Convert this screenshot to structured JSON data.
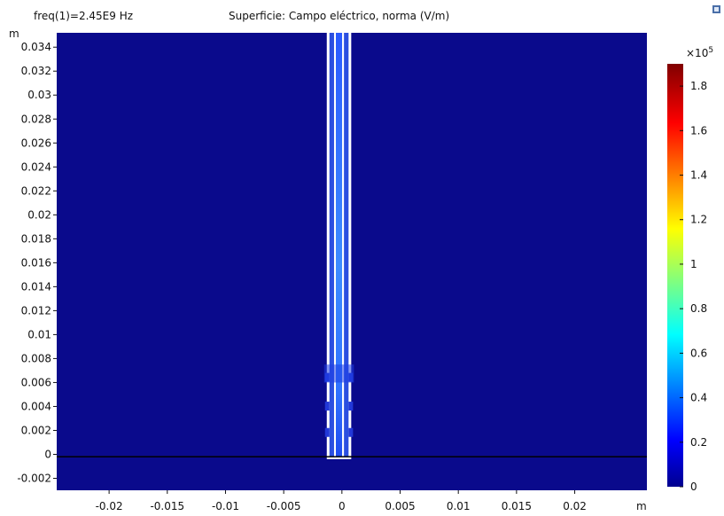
{
  "header": {
    "param_label": "freq(1)=2.45E9 Hz",
    "plot_title": "Superficie: Campo eléctrico, norma (V/m)"
  },
  "chart_data": {
    "type": "heatmap",
    "title": "Superficie: Campo eléctrico, norma (V/m)",
    "subtitle": "freq(1)=2.45E9 Hz",
    "xlabel": "m",
    "ylabel": "m",
    "xlim": [
      -0.0245,
      0.0262
    ],
    "ylim": [
      -0.003,
      0.0352
    ],
    "x_ticks": [
      {
        "value": -0.02,
        "label": "-0.02"
      },
      {
        "value": -0.015,
        "label": "-0.015"
      },
      {
        "value": -0.01,
        "label": "-0.01"
      },
      {
        "value": -0.005,
        "label": "-0.005"
      },
      {
        "value": 0,
        "label": "0"
      },
      {
        "value": 0.005,
        "label": "0.005"
      },
      {
        "value": 0.01,
        "label": "0.01"
      },
      {
        "value": 0.015,
        "label": "0.015"
      },
      {
        "value": 0.02,
        "label": "0.02"
      }
    ],
    "y_ticks": [
      {
        "value": -0.002,
        "label": "-0.002"
      },
      {
        "value": 0,
        "label": "0"
      },
      {
        "value": 0.002,
        "label": "0.002"
      },
      {
        "value": 0.004,
        "label": "0.004"
      },
      {
        "value": 0.006,
        "label": "0.006"
      },
      {
        "value": 0.008,
        "label": "0.008"
      },
      {
        "value": 0.01,
        "label": "0.01"
      },
      {
        "value": 0.012,
        "label": "0.012"
      },
      {
        "value": 0.014,
        "label": "0.014"
      },
      {
        "value": 0.016,
        "label": "0.016"
      },
      {
        "value": 0.018,
        "label": "0.018"
      },
      {
        "value": 0.02,
        "label": "0.02"
      },
      {
        "value": 0.022,
        "label": "0.022"
      },
      {
        "value": 0.024,
        "label": "0.024"
      },
      {
        "value": 0.026,
        "label": "0.026"
      },
      {
        "value": 0.028,
        "label": "0.028"
      },
      {
        "value": 0.03,
        "label": "0.03"
      },
      {
        "value": 0.032,
        "label": "0.032"
      },
      {
        "value": 0.034,
        "label": "0.034"
      }
    ],
    "colorbar": {
      "multiplier_label": "×10",
      "multiplier_exponent": "5",
      "range": [
        0,
        1.9
      ],
      "ticks": [
        {
          "value": 0,
          "label": "0"
        },
        {
          "value": 0.2,
          "label": "0.2"
        },
        {
          "value": 0.4,
          "label": "0.4"
        },
        {
          "value": 0.6,
          "label": "0.6"
        },
        {
          "value": 0.8,
          "label": "0.8"
        },
        {
          "value": 1.0,
          "label": "1"
        },
        {
          "value": 1.2,
          "label": "1.2"
        },
        {
          "value": 1.4,
          "label": "1.4"
        },
        {
          "value": 1.6,
          "label": "1.6"
        },
        {
          "value": 1.8,
          "label": "1.8"
        }
      ],
      "colormap": "rainbow (jet)",
      "colormap_stops": [
        "#00008f",
        "#0000ff",
        "#00ffff",
        "#ffff00",
        "#ff0000",
        "#800000"
      ]
    },
    "field": {
      "background_value": 0.03,
      "background_color": "#0a0a8c",
      "probe_x_range": [
        -0.0013,
        0.0008
      ],
      "probe_y_range": [
        -0.0004,
        0.0352
      ],
      "inner_channel_value": 0.45,
      "inner_channel_color": "#3c8cff",
      "gaps_value": 0.25,
      "gap_color": "#2a5aff",
      "ground_line_y": -0.0002
    },
    "grid": false,
    "legend": "right"
  }
}
